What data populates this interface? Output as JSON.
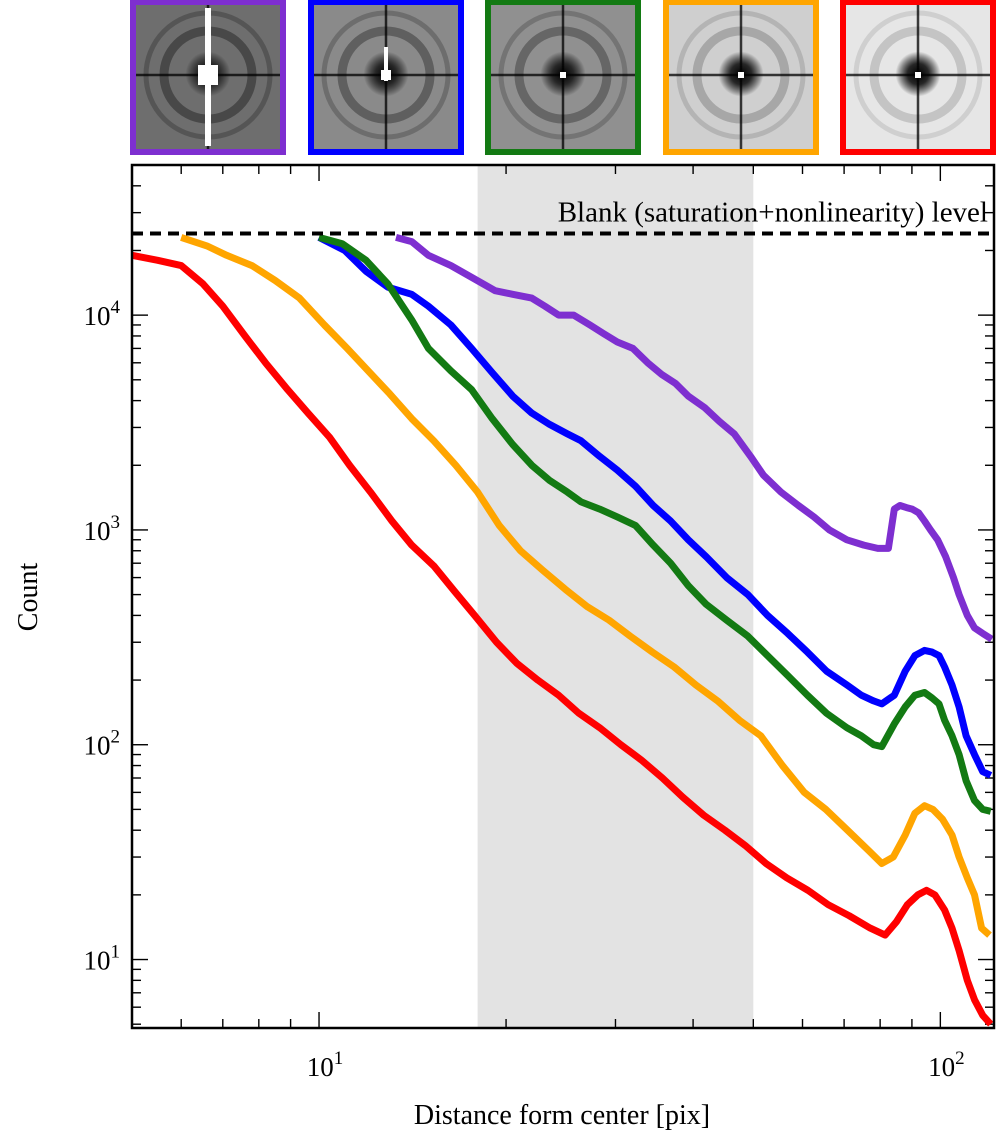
{
  "chart_data": {
    "type": "line",
    "title": "",
    "xlabel": "Distance form center [pix]",
    "ylabel": "Count",
    "x_scale": "log",
    "y_scale": "log",
    "xlim": [
      5,
      122
    ],
    "ylim": [
      4.8,
      50000
    ],
    "grid": false,
    "legend": "none",
    "x_ticks": [
      {
        "value": 10,
        "base": "10",
        "exp": "1"
      },
      {
        "value": 100,
        "base": "10",
        "exp": "2"
      }
    ],
    "y_ticks": [
      {
        "value": 10,
        "base": "10",
        "exp": "1"
      },
      {
        "value": 100,
        "base": "10",
        "exp": "2"
      },
      {
        "value": 1000,
        "base": "10",
        "exp": "3"
      },
      {
        "value": 10000,
        "base": "10",
        "exp": "4"
      }
    ],
    "shaded_region": {
      "x0": 18,
      "x1": 50,
      "color": "#e3e3e3"
    },
    "reference_line": {
      "y": 24000,
      "label": "Blank (saturation+nonlinearity) level",
      "style": "dashed",
      "color": "#000000"
    },
    "thumbnails": [
      {
        "border_color": "#7e2fd0",
        "bg": "#6e6e6e",
        "center": "#000000",
        "rings": "#3c3c3c",
        "spot": "#ffffff"
      },
      {
        "border_color": "#0000ff",
        "bg": "#8a8a8a",
        "center": "#000000",
        "rings": "#505050",
        "spot": "#ffffff"
      },
      {
        "border_color": "#137a13",
        "bg": "#909090",
        "center": "#000000",
        "rings": "#585858",
        "spot": "#ffffff"
      },
      {
        "border_color": "#ffa500",
        "bg": "#cfcfcf",
        "center": "#000000",
        "rings": "#9a9a9a",
        "spot": "#ffffff"
      },
      {
        "border_color": "#ff0000",
        "bg": "#e6e6e6",
        "center": "#000000",
        "rings": "#b8b8b8",
        "spot": "#ffffff"
      }
    ],
    "series": [
      {
        "color": "#7e2fd0",
        "x": [
          13.3,
          14.1,
          15.0,
          16.3,
          17.6,
          19.2,
          20.5,
          22.0,
          23.1,
          24.3,
          25.7,
          27.3,
          28.7,
          30.2,
          32.0,
          33.8,
          35.6,
          37.5,
          39.3,
          41.8,
          44.1,
          46.6,
          49.5,
          51.9,
          55.4,
          59.1,
          62.6,
          66.3,
          70.7,
          75.3,
          79.3,
          82.5,
          84.3,
          86.1,
          88.2,
          90.1,
          92.3,
          94.3,
          96.4,
          99.0,
          102.0,
          105.0,
          107.2,
          110.5,
          113.5,
          117.0,
          121.0
        ],
        "y": [
          23000,
          22000,
          19000,
          17000,
          15000,
          13000,
          12500,
          12000,
          11000,
          10000,
          10000,
          9000,
          8200,
          7500,
          7000,
          6000,
          5300,
          4800,
          4200,
          3700,
          3200,
          2800,
          2200,
          1800,
          1500,
          1300,
          1150,
          1000,
          900,
          850,
          820,
          820,
          1250,
          1300,
          1270,
          1250,
          1200,
          1100,
          1000,
          900,
          750,
          600,
          500,
          400,
          350,
          330,
          310
        ]
      },
      {
        "color": "#0000ff",
        "x": [
          10.0,
          11.0,
          11.9,
          12.9,
          14.1,
          15.0,
          16.3,
          17.6,
          19.0,
          20.5,
          22.0,
          23.5,
          25.1,
          26.4,
          28.3,
          30.2,
          32.3,
          34.5,
          36.8,
          39.3,
          42.0,
          45.3,
          49.0,
          52.7,
          56.8,
          61.1,
          65.6,
          70.7,
          74.6,
          78.1,
          80.5,
          84.3,
          87.8,
          91.0,
          94.3,
          97.0,
          99.5,
          101.6,
          104.4,
          107.2,
          110.0,
          113.5,
          117.0,
          120.5
        ],
        "y": [
          23000,
          20000,
          16000,
          13500,
          12500,
          11000,
          9000,
          7000,
          5400,
          4200,
          3500,
          3100,
          2800,
          2600,
          2200,
          1900,
          1600,
          1300,
          1100,
          900,
          750,
          600,
          500,
          400,
          330,
          270,
          220,
          190,
          170,
          160,
          155,
          170,
          220,
          260,
          275,
          270,
          260,
          230,
          190,
          150,
          110,
          90,
          75,
          72
        ]
      },
      {
        "color": "#137a13",
        "x": [
          10.0,
          10.9,
          11.9,
          12.9,
          14.1,
          15.0,
          16.3,
          17.6,
          19.0,
          20.5,
          22.0,
          23.5,
          25.1,
          26.4,
          28.3,
          30.2,
          32.3,
          34.5,
          36.8,
          39.3,
          42.0,
          45.3,
          49.0,
          52.7,
          56.8,
          61.1,
          65.6,
          70.7,
          74.6,
          78.1,
          80.5,
          84.3,
          87.8,
          91.0,
          94.3,
          97.0,
          99.5,
          101.6,
          104.4,
          107.2,
          110.0,
          113.5,
          117.0,
          120.5
        ],
        "y": [
          23000,
          21500,
          18000,
          14000,
          9500,
          7000,
          5500,
          4500,
          3300,
          2500,
          2000,
          1700,
          1500,
          1350,
          1250,
          1150,
          1050,
          850,
          700,
          550,
          450,
          380,
          320,
          260,
          210,
          170,
          140,
          120,
          110,
          100,
          98,
          125,
          150,
          170,
          175,
          165,
          155,
          130,
          110,
          90,
          68,
          55,
          50,
          49
        ]
      },
      {
        "color": "#ffa500",
        "x": [
          6.0,
          6.6,
          7.1,
          7.8,
          8.5,
          9.3,
          10.2,
          11.1,
          12.0,
          13.0,
          14.1,
          15.3,
          16.6,
          18.0,
          19.5,
          21.1,
          22.9,
          24.9,
          27.0,
          29.3,
          31.7,
          34.4,
          37.3,
          40.4,
          43.8,
          47.5,
          51.4,
          55.7,
          60.4,
          65.4,
          70.9,
          76.8,
          80.5,
          84.0,
          87.8,
          91.0,
          94.3,
          97.3,
          100.8,
          104.4,
          107.2,
          110.5,
          113.5,
          116.5,
          120.0
        ],
        "y": [
          23000,
          21000,
          19000,
          17000,
          14500,
          12000,
          9000,
          7000,
          5500,
          4300,
          3300,
          2600,
          2000,
          1500,
          1050,
          800,
          650,
          530,
          440,
          380,
          320,
          270,
          230,
          190,
          160,
          130,
          110,
          80,
          60,
          50,
          40,
          32,
          28,
          30,
          38,
          48,
          52,
          50,
          45,
          38,
          30,
          24,
          20,
          14,
          13
        ]
      },
      {
        "color": "#ff0000",
        "x": [
          5.0,
          5.5,
          6.0,
          6.5,
          7.0,
          7.6,
          8.2,
          8.9,
          9.6,
          10.4,
          11.2,
          12.1,
          13.1,
          14.1,
          15.3,
          16.5,
          17.8,
          19.3,
          20.8,
          22.5,
          24.3,
          26.2,
          28.3,
          30.6,
          33.0,
          35.7,
          38.5,
          41.6,
          45.0,
          48.5,
          52.4,
          56.6,
          61.2,
          66.0,
          71.3,
          77.1,
          81.5,
          85.0,
          88.5,
          92.0,
          95.0,
          98.0,
          101.6,
          104.4,
          107.2,
          110.5,
          113.5,
          117.0,
          120.5
        ],
        "y": [
          19000,
          18000,
          17000,
          14000,
          11000,
          8000,
          6000,
          4500,
          3500,
          2700,
          2000,
          1500,
          1100,
          850,
          680,
          520,
          400,
          300,
          240,
          200,
          170,
          140,
          120,
          100,
          85,
          70,
          57,
          47,
          40,
          34,
          28,
          24,
          21,
          18,
          16,
          14,
          13,
          15,
          18,
          20,
          21,
          20,
          17,
          14,
          11,
          8,
          6.5,
          5.5,
          5.0
        ]
      }
    ]
  }
}
